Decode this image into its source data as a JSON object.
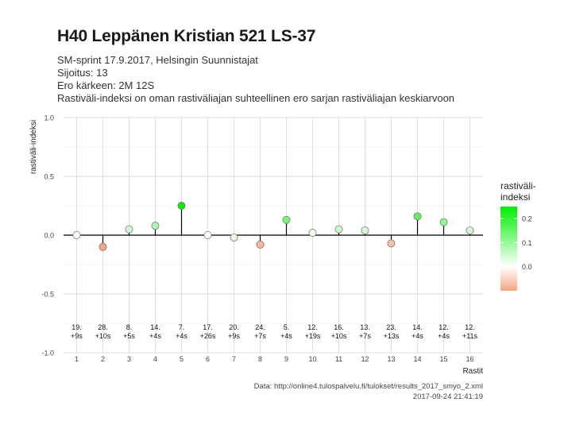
{
  "title": "H40 Leppänen Kristian 521 LS-37",
  "subtitle_lines": [
    "SM-sprint 17.9.2017, Helsingin Suunnistajat",
    "Sijoitus: 13",
    "Ero kärkeen: 2M 12S",
    "Rastiväli-indeksi on oman rastiväliajan suhteellinen ero sarjan rastiväliajan keskiarvoon"
  ],
  "caption": {
    "source": "Data: http://online4.tulospalvelu.fi/tulokset/results_2017_smyo_2.xml",
    "timestamp": "2017-09-24 21:41:19"
  },
  "chart_data": {
    "type": "scatter",
    "style": "lollipop",
    "xlabel": "Rastit",
    "ylabel": "rastiväli-indeksi",
    "x": [
      1,
      2,
      3,
      4,
      5,
      6,
      7,
      8,
      9,
      10,
      11,
      12,
      13,
      14,
      15,
      16
    ],
    "values": [
      0.0,
      -0.1,
      0.05,
      0.08,
      0.25,
      0.0,
      -0.02,
      -0.08,
      0.13,
      0.02,
      0.05,
      0.04,
      -0.07,
      0.16,
      0.11,
      0.04
    ],
    "split_labels": [
      [
        "19.",
        "+9s"
      ],
      [
        "28.",
        "+10s"
      ],
      [
        "8.",
        "+5s"
      ],
      [
        "14.",
        "+4s"
      ],
      [
        "7.",
        "+4s"
      ],
      [
        "17.",
        "+26s"
      ],
      [
        "20.",
        "+9s"
      ],
      [
        "24.",
        "+7s"
      ],
      [
        "5.",
        "+4s"
      ],
      [
        "12.",
        "+19s"
      ],
      [
        "16.",
        "+10s"
      ],
      [
        "13.",
        "+7s"
      ],
      [
        "23.",
        "+13s"
      ],
      [
        "14.",
        "+4s"
      ],
      [
        "12.",
        "+4s"
      ],
      [
        "12.",
        "+11s"
      ]
    ],
    "xlim": [
      0.5,
      16.5
    ],
    "ylim": [
      -1.0,
      1.0
    ],
    "yticks": [
      -1.0,
      -0.5,
      0.0,
      0.5,
      1.0
    ],
    "ytick_labels": [
      "-1.0",
      "-0.5",
      "0.0",
      "0.5",
      "1.0"
    ],
    "grid": true,
    "legend": {
      "title_lines": [
        "rastiväli-",
        "indeksi"
      ],
      "ticks": [
        0.2,
        0.1,
        0.0
      ],
      "tick_labels": [
        "0.2",
        "0.1",
        "0.0"
      ],
      "range": [
        -0.1,
        0.25
      ],
      "position": "right"
    },
    "colors": {
      "low": "#f4a583",
      "mid": "#ffffff",
      "high": "#00ee00"
    }
  }
}
